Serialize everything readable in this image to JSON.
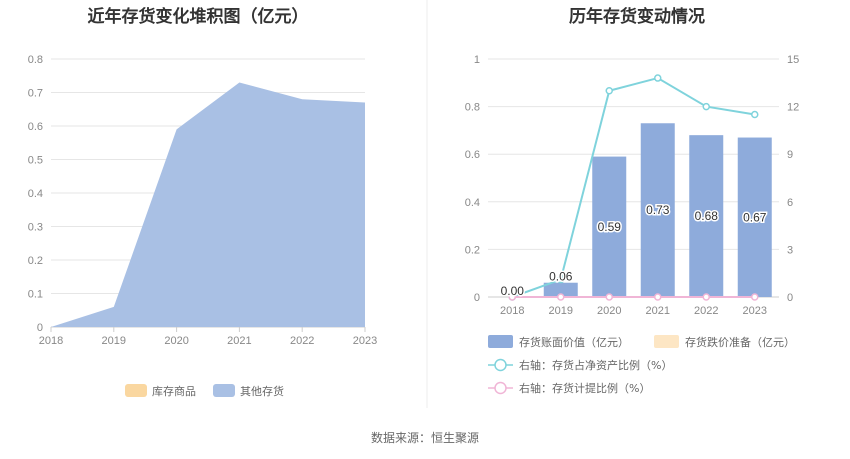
{
  "source_text": "数据来源：恒生聚源",
  "chart_data": [
    {
      "type": "area",
      "title": "近年存货变化堆积图（亿元）",
      "x": [
        "2018",
        "2019",
        "2020",
        "2021",
        "2022",
        "2023"
      ],
      "ylim": [
        0,
        0.8
      ],
      "yticks": [
        "0",
        "0.1",
        "0.2",
        "0.3",
        "0.4",
        "0.5",
        "0.6",
        "0.7",
        "0.8"
      ],
      "series": [
        {
          "name": "库存商品",
          "color": "#fad7a0",
          "values": [
            0,
            0,
            0,
            0,
            0,
            0
          ]
        },
        {
          "name": "其他存货",
          "color": "#a9c0e4",
          "values": [
            0.0,
            0.06,
            0.59,
            0.73,
            0.68,
            0.67
          ]
        }
      ],
      "legend_position": "bottom",
      "grid": true
    },
    {
      "type": "bar",
      "title": "历年存货变动情况",
      "x": [
        "2018",
        "2019",
        "2020",
        "2021",
        "2022",
        "2023"
      ],
      "ylim": [
        0,
        1
      ],
      "yticks": [
        "0",
        "0.2",
        "0.4",
        "0.6",
        "0.8",
        "1"
      ],
      "y2lim": [
        0,
        15
      ],
      "y2ticks": [
        "0",
        "3",
        "6",
        "9",
        "12",
        "15"
      ],
      "series": [
        {
          "name": "存货账面价值（亿元）",
          "kind": "bar",
          "axis": "left",
          "color": "#8eabdb",
          "values": [
            0.0,
            0.06,
            0.59,
            0.73,
            0.68,
            0.67
          ],
          "labels": [
            "0.00",
            "0.06",
            "0.59",
            "0.73",
            "0.68",
            "0.67"
          ]
        },
        {
          "name": "存货跌价准备（亿元）",
          "kind": "bar",
          "axis": "left",
          "color": "#fde6c4",
          "values": [
            0,
            0,
            0,
            0,
            0,
            0
          ]
        },
        {
          "name": "右轴：存货占净资产比例（%）",
          "kind": "line",
          "axis": "right",
          "color": "#7fd3dc",
          "values": [
            0.0,
            1.1,
            13.0,
            13.8,
            12.0,
            11.5
          ]
        },
        {
          "name": "右轴：存货计提比例（%）",
          "kind": "line",
          "axis": "right",
          "color": "#f0b5d6",
          "values": [
            0,
            0,
            0,
            0,
            0,
            0
          ]
        }
      ],
      "legend_position": "bottom",
      "grid": true
    }
  ]
}
